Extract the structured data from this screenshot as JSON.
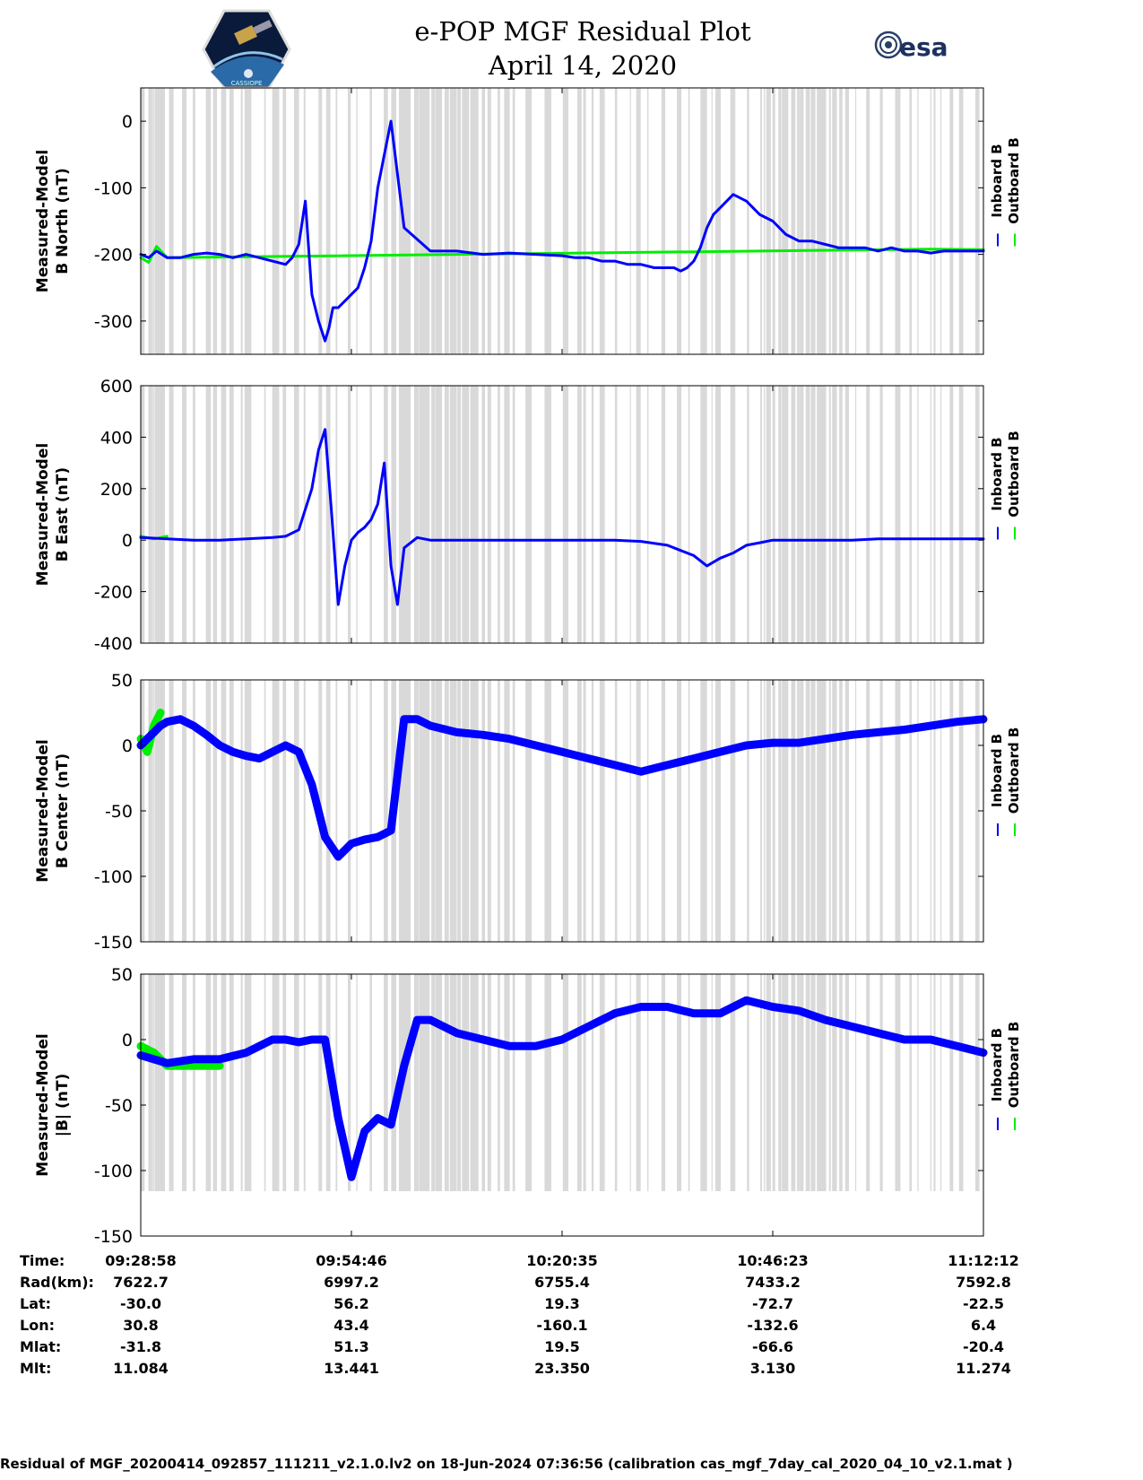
{
  "title": {
    "line1": "e-POP MGF Residual Plot",
    "line2": "April 14, 2020"
  },
  "logos": {
    "left": "CASSIOPE",
    "right": "esa"
  },
  "colors": {
    "inboard": "#0000ff",
    "outboard": "#00ee00",
    "gap": "#d9d9d9",
    "axis": "#000000"
  },
  "chart_data": [
    {
      "type": "line",
      "ylabel": [
        "Measured-Model",
        "B North (nT)"
      ],
      "ylim": [
        -350,
        50
      ],
      "yticks": [
        0,
        -100,
        -200,
        -300
      ],
      "legend": [
        "Inboard B",
        "Outboard B"
      ],
      "series": [
        {
          "name": "Inboard B",
          "x": [
            0,
            0.6,
            1.2,
            2,
            3,
            4,
            5,
            6,
            7,
            8,
            9,
            10,
            11,
            11.5,
            12,
            12.5,
            13,
            13.5,
            14,
            14.3,
            14.6,
            15,
            15.5,
            16,
            16.5,
            17,
            17.5,
            18,
            19,
            20,
            22,
            24,
            26,
            28,
            30,
            32,
            33,
            34,
            35,
            36,
            37,
            38,
            39,
            40,
            40.5,
            41,
            41.5,
            42,
            42.5,
            43,
            43.5,
            44,
            45,
            46,
            47,
            48,
            49,
            50,
            51,
            52,
            53,
            54,
            55,
            56,
            57,
            58,
            59,
            60,
            61,
            62,
            63,
            64
          ],
          "y": [
            -200,
            -205,
            -195,
            -205,
            -205,
            -200,
            -198,
            -200,
            -205,
            -200,
            -205,
            -210,
            -215,
            -205,
            -185,
            -120,
            -260,
            -300,
            -330,
            -310,
            -280,
            -280,
            -270,
            -260,
            -250,
            -220,
            -180,
            -100,
            0,
            -160,
            -195,
            -195,
            -200,
            -198,
            -200,
            -202,
            -205,
            -205,
            -210,
            -210,
            -215,
            -215,
            -220,
            -220,
            -220,
            -225,
            -220,
            -210,
            -190,
            -160,
            -140,
            -130,
            -110,
            -120,
            -140,
            -150,
            -170,
            -180,
            -180,
            -185,
            -190,
            -190,
            -190,
            -195,
            -190,
            -195,
            -195,
            -198,
            -195,
            -195,
            -195,
            -195
          ]
        },
        {
          "name": "Outboard B",
          "x": [
            0,
            0.6,
            1.2,
            2,
            60,
            64
          ],
          "y": [
            -205,
            -212,
            -188,
            -205,
            -192,
            -193
          ]
        }
      ]
    },
    {
      "type": "line",
      "ylabel": [
        "Measured-Model",
        "B East (nT)"
      ],
      "ylim": [
        -400,
        600
      ],
      "yticks": [
        600,
        400,
        200,
        0,
        -200,
        -400
      ],
      "legend": [
        "Inboard B",
        "Outboard B"
      ],
      "series": [
        {
          "name": "Inboard B",
          "x": [
            0,
            2,
            4,
            6,
            8,
            10,
            11,
            12,
            13,
            13.5,
            14,
            14.5,
            15,
            15.5,
            16,
            16.5,
            17,
            17.5,
            18,
            18.5,
            19,
            19.5,
            20,
            21,
            22,
            24,
            26,
            28,
            30,
            32,
            34,
            36,
            38,
            40,
            41,
            42,
            43,
            44,
            45,
            46,
            47,
            48,
            50,
            52,
            54,
            56,
            58,
            60,
            62,
            64
          ],
          "y": [
            10,
            5,
            0,
            0,
            5,
            10,
            15,
            40,
            200,
            350,
            430,
            100,
            -250,
            -100,
            0,
            30,
            50,
            80,
            140,
            300,
            -100,
            -250,
            -30,
            10,
            0,
            0,
            0,
            0,
            0,
            0,
            0,
            0,
            -5,
            -20,
            -40,
            -60,
            -100,
            -70,
            -50,
            -20,
            -10,
            0,
            0,
            0,
            0,
            5,
            5,
            5,
            5,
            5
          ]
        },
        {
          "name": "Outboard B",
          "x": [
            0,
            1,
            2
          ],
          "y": [
            15,
            5,
            15
          ]
        }
      ]
    },
    {
      "type": "line",
      "ylabel": [
        "Measured-Model",
        "B Center (nT)"
      ],
      "ylim": [
        -150,
        50
      ],
      "yticks": [
        50,
        0,
        -50,
        -100,
        -150
      ],
      "legend": [
        "Inboard B",
        "Outboard B"
      ],
      "series": [
        {
          "name": "Inboard B",
          "x": [
            0,
            0.5,
            1,
            1.5,
            2,
            3,
            4,
            5,
            6,
            7,
            8,
            9,
            10,
            11,
            12,
            13,
            14,
            15,
            16,
            17,
            18,
            19,
            20,
            21,
            22,
            24,
            26,
            28,
            30,
            32,
            34,
            36,
            38,
            40,
            42,
            44,
            46,
            48,
            50,
            52,
            54,
            56,
            58,
            60,
            62,
            64
          ],
          "y": [
            0,
            5,
            10,
            15,
            18,
            20,
            15,
            8,
            0,
            -5,
            -8,
            -10,
            -5,
            0,
            -5,
            -30,
            -70,
            -85,
            -75,
            -72,
            -70,
            -65,
            20,
            20,
            15,
            10,
            8,
            5,
            0,
            -5,
            -10,
            -15,
            -20,
            -15,
            -10,
            -5,
            0,
            2,
            2,
            5,
            8,
            10,
            12,
            15,
            18,
            20
          ]
        },
        {
          "name": "Outboard B",
          "x": [
            0,
            0.5,
            1,
            1.5
          ],
          "y": [
            5,
            -5,
            15,
            25
          ]
        }
      ]
    },
    {
      "type": "line",
      "ylabel": [
        "Measured-Model",
        "|B| (nT)"
      ],
      "ylim": [
        -150,
        50
      ],
      "yticks": [
        50,
        0,
        -50,
        -100,
        -150
      ],
      "legend": [
        "Inboard B",
        "Outboard B"
      ],
      "series": [
        {
          "name": "Inboard B",
          "x": [
            0,
            1,
            2,
            4,
            6,
            8,
            9,
            10,
            11,
            12,
            13,
            14,
            15,
            16,
            17,
            18,
            19,
            20,
            21,
            22,
            24,
            26,
            28,
            30,
            32,
            34,
            36,
            38,
            40,
            42,
            44,
            46,
            48,
            50,
            52,
            54,
            56,
            58,
            60,
            62,
            64
          ],
          "y": [
            -12,
            -15,
            -18,
            -15,
            -15,
            -10,
            -5,
            0,
            0,
            -2,
            0,
            0,
            -60,
            -105,
            -70,
            -60,
            -65,
            -20,
            15,
            15,
            5,
            0,
            -5,
            -5,
            0,
            10,
            20,
            25,
            25,
            20,
            20,
            30,
            25,
            22,
            15,
            10,
            5,
            0,
            0,
            -5,
            -10
          ]
        },
        {
          "name": "Outboard B",
          "x": [
            0,
            1,
            2,
            4,
            6
          ],
          "y": [
            -5,
            -10,
            -20,
            -20,
            -20
          ]
        }
      ]
    }
  ],
  "footer": {
    "row_labels": [
      "Time:",
      "Rad(km):",
      "Lat:",
      "Lon:",
      "Mlat:",
      "Mlt:"
    ],
    "columns": [
      {
        "time": "09:28:58",
        "rad": "7622.7",
        "lat": "-30.0",
        "lon": "30.8",
        "mlat": "-31.8",
        "mlt": "11.084"
      },
      {
        "time": "09:54:46",
        "rad": "6997.2",
        "lat": "56.2",
        "lon": "43.4",
        "mlat": "51.3",
        "mlt": "13.441"
      },
      {
        "time": "10:20:35",
        "rad": "6755.4",
        "lat": "19.3",
        "lon": "-160.1",
        "mlat": "19.5",
        "mlt": "23.350"
      },
      {
        "time": "10:46:23",
        "rad": "7433.2",
        "lat": "-72.7",
        "lon": "-132.6",
        "mlat": "-66.6",
        "mlt": "3.130"
      },
      {
        "time": "11:12:12",
        "rad": "7592.8",
        "lat": "-22.5",
        "lon": "6.4",
        "mlat": "-20.4",
        "mlt": "11.274"
      }
    ],
    "note": "Residual of MGF_20200414_092857_111211_v2.1.0.lv2 on 18-Jun-2024 07:36:56 (calibration cas_mgf_7day_cal_2020_04_10_v2.1.mat )"
  }
}
